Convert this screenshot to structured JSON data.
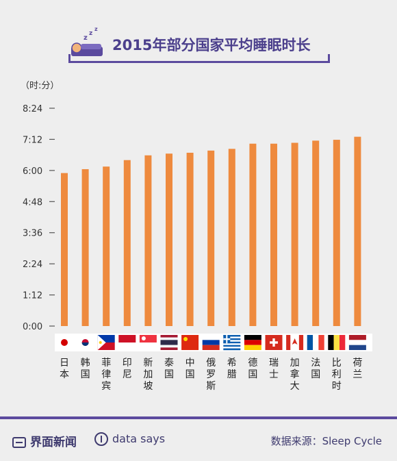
{
  "title": "2015年部分国家平均睡眠时长",
  "icons": {
    "header": "sleeping-person-icon",
    "brand": "jiemian-logo-icon",
    "datasays": "data-says-icon"
  },
  "colors": {
    "bar": "#ee8a3e",
    "accent": "#5b4a9e",
    "axis_text": "#333333"
  },
  "chart_data": {
    "type": "bar",
    "title": "2015年部分国家平均睡眠时长",
    "ylabel": "（时:分）",
    "ylim_minutes": [
      0,
      504
    ],
    "y_ticks": [
      "0:00",
      "1:12",
      "2:24",
      "3:36",
      "4:48",
      "6:00",
      "7:12",
      "8:24"
    ],
    "y_tick_values_minutes": [
      0,
      72,
      144,
      216,
      288,
      360,
      432,
      504
    ],
    "grid": false,
    "categories": [
      "日本",
      "韩国",
      "菲律宾",
      "印尼",
      "新加坡",
      "泰国",
      "中国",
      "俄罗斯",
      "希腊",
      "德国",
      "瑞士",
      "加拿大",
      "法国",
      "比利时",
      "荷兰"
    ],
    "values_minutes": [
      354,
      363,
      369,
      384,
      395,
      399,
      401,
      406,
      410,
      422,
      422,
      424,
      429,
      431,
      438
    ],
    "flags": [
      "jp",
      "kr",
      "ph",
      "id",
      "sg",
      "th",
      "cn",
      "ru",
      "gr",
      "de",
      "ch",
      "ca",
      "fr",
      "be",
      "nl"
    ]
  },
  "footer": {
    "brand": "界面新闻",
    "datasays": "data says",
    "source": "数据来源：Sleep Cycle"
  }
}
